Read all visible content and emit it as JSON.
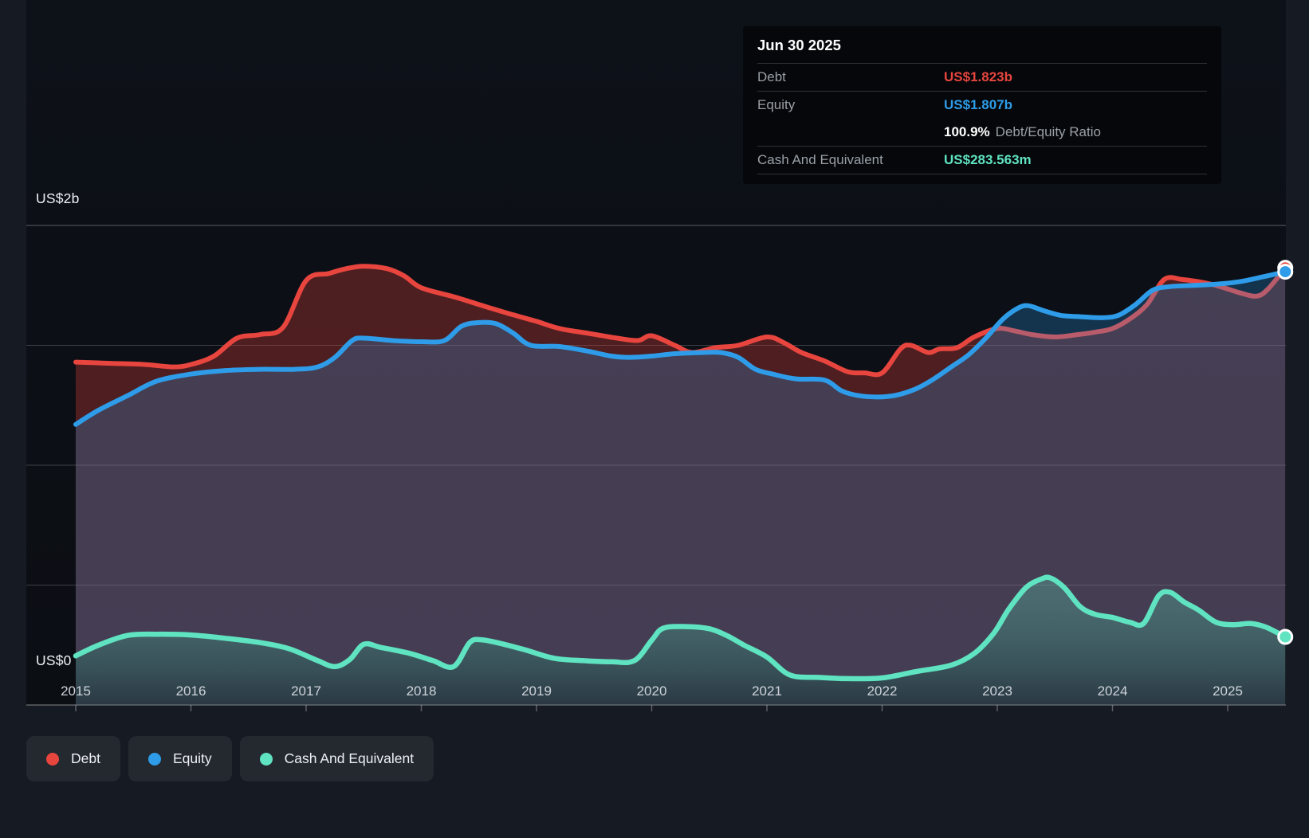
{
  "tooltip": {
    "date": "Jun 30 2025",
    "debt": {
      "label": "Debt",
      "value": "US$1.823b"
    },
    "equity": {
      "label": "Equity",
      "value": "US$1.807b"
    },
    "ratio": {
      "value": "100.9%",
      "label": "Debt/Equity Ratio"
    },
    "cash": {
      "label": "Cash And Equivalent",
      "value": "US$283.563m"
    }
  },
  "axis": {
    "y_top_label": "US$2b",
    "y_bottom_label": "US$0",
    "years": [
      "2015",
      "2016",
      "2017",
      "2018",
      "2019",
      "2020",
      "2021",
      "2022",
      "2023",
      "2024",
      "2025"
    ]
  },
  "legend": {
    "items": [
      {
        "label": "Debt",
        "color": "#e8453f"
      },
      {
        "label": "Equity",
        "color": "#2e9ce8"
      },
      {
        "label": "Cash And Equivalent",
        "color": "#5fe3c0"
      }
    ]
  },
  "colors": {
    "debt": "#e8453f",
    "equity": "#2e9ce8",
    "cash": "#5fe3c0",
    "page_background": "#161b23",
    "plot_background": "#0d1117",
    "tooltip_background": "#05070a"
  },
  "chart_data": {
    "type": "area",
    "title": "",
    "xlabel": "",
    "ylabel": "",
    "x_range": [
      2015.0,
      2025.5
    ],
    "ylim": [
      0,
      2
    ],
    "y_units": "US$ billions",
    "y_gridline_step": 0.5,
    "x_ticks": [
      2015,
      2016,
      2017,
      2018,
      2019,
      2020,
      2021,
      2022,
      2023,
      2024,
      2025
    ],
    "legend_position": "bottom-left",
    "grid": true,
    "last_point_date": "Jun 30 2025",
    "series": [
      {
        "name": "Debt",
        "color": "#e8453f",
        "end_value_b": 1.823,
        "points": [
          [
            2015.0,
            1.43
          ],
          [
            2015.3,
            1.425
          ],
          [
            2015.6,
            1.42
          ],
          [
            2015.85,
            1.41
          ],
          [
            2016.0,
            1.42
          ],
          [
            2016.2,
            1.455
          ],
          [
            2016.4,
            1.53
          ],
          [
            2016.6,
            1.545
          ],
          [
            2016.8,
            1.575
          ],
          [
            2017.0,
            1.77
          ],
          [
            2017.2,
            1.8
          ],
          [
            2017.35,
            1.82
          ],
          [
            2017.5,
            1.83
          ],
          [
            2017.7,
            1.82
          ],
          [
            2017.85,
            1.79
          ],
          [
            2018.0,
            1.74
          ],
          [
            2018.3,
            1.7
          ],
          [
            2018.6,
            1.655
          ],
          [
            2018.85,
            1.62
          ],
          [
            2019.0,
            1.6
          ],
          [
            2019.2,
            1.57
          ],
          [
            2019.45,
            1.55
          ],
          [
            2019.7,
            1.53
          ],
          [
            2019.88,
            1.52
          ],
          [
            2020.0,
            1.54
          ],
          [
            2020.2,
            1.5
          ],
          [
            2020.35,
            1.47
          ],
          [
            2020.55,
            1.49
          ],
          [
            2020.75,
            1.5
          ],
          [
            2021.0,
            1.535
          ],
          [
            2021.15,
            1.51
          ],
          [
            2021.3,
            1.47
          ],
          [
            2021.5,
            1.435
          ],
          [
            2021.7,
            1.39
          ],
          [
            2021.85,
            1.385
          ],
          [
            2022.0,
            1.385
          ],
          [
            2022.16,
            1.485
          ],
          [
            2022.25,
            1.5
          ],
          [
            2022.4,
            1.47
          ],
          [
            2022.5,
            1.485
          ],
          [
            2022.65,
            1.49
          ],
          [
            2022.8,
            1.535
          ],
          [
            2023.0,
            1.57
          ],
          [
            2023.15,
            1.56
          ],
          [
            2023.3,
            1.545
          ],
          [
            2023.5,
            1.535
          ],
          [
            2023.7,
            1.545
          ],
          [
            2023.85,
            1.555
          ],
          [
            2024.0,
            1.57
          ],
          [
            2024.15,
            1.61
          ],
          [
            2024.3,
            1.67
          ],
          [
            2024.45,
            1.775
          ],
          [
            2024.6,
            1.775
          ],
          [
            2024.75,
            1.765
          ],
          [
            2024.9,
            1.75
          ],
          [
            2025.1,
            1.72
          ],
          [
            2025.25,
            1.705
          ],
          [
            2025.35,
            1.735
          ],
          [
            2025.5,
            1.823
          ]
        ]
      },
      {
        "name": "Equity",
        "color": "#2e9ce8",
        "end_value_b": 1.807,
        "points": [
          [
            2015.0,
            1.17
          ],
          [
            2015.2,
            1.23
          ],
          [
            2015.45,
            1.29
          ],
          [
            2015.7,
            1.35
          ],
          [
            2016.0,
            1.38
          ],
          [
            2016.3,
            1.395
          ],
          [
            2016.6,
            1.4
          ],
          [
            2016.9,
            1.4
          ],
          [
            2017.1,
            1.41
          ],
          [
            2017.25,
            1.45
          ],
          [
            2017.4,
            1.52
          ],
          [
            2017.5,
            1.53
          ],
          [
            2017.75,
            1.52
          ],
          [
            2018.0,
            1.515
          ],
          [
            2018.2,
            1.52
          ],
          [
            2018.35,
            1.58
          ],
          [
            2018.5,
            1.595
          ],
          [
            2018.65,
            1.59
          ],
          [
            2018.8,
            1.55
          ],
          [
            2018.95,
            1.5
          ],
          [
            2019.2,
            1.495
          ],
          [
            2019.45,
            1.475
          ],
          [
            2019.65,
            1.455
          ],
          [
            2019.8,
            1.45
          ],
          [
            2020.0,
            1.455
          ],
          [
            2020.2,
            1.465
          ],
          [
            2020.45,
            1.47
          ],
          [
            2020.6,
            1.47
          ],
          [
            2020.75,
            1.45
          ],
          [
            2020.9,
            1.4
          ],
          [
            2021.05,
            1.38
          ],
          [
            2021.25,
            1.36
          ],
          [
            2021.5,
            1.355
          ],
          [
            2021.65,
            1.31
          ],
          [
            2021.8,
            1.29
          ],
          [
            2022.0,
            1.285
          ],
          [
            2022.15,
            1.295
          ],
          [
            2022.3,
            1.32
          ],
          [
            2022.45,
            1.36
          ],
          [
            2022.6,
            1.41
          ],
          [
            2022.75,
            1.46
          ],
          [
            2022.9,
            1.53
          ],
          [
            2023.05,
            1.61
          ],
          [
            2023.18,
            1.655
          ],
          [
            2023.27,
            1.665
          ],
          [
            2023.4,
            1.645
          ],
          [
            2023.55,
            1.625
          ],
          [
            2023.7,
            1.62
          ],
          [
            2023.9,
            1.615
          ],
          [
            2024.05,
            1.625
          ],
          [
            2024.2,
            1.67
          ],
          [
            2024.35,
            1.73
          ],
          [
            2024.5,
            1.745
          ],
          [
            2024.7,
            1.75
          ],
          [
            2024.9,
            1.755
          ],
          [
            2025.1,
            1.765
          ],
          [
            2025.3,
            1.785
          ],
          [
            2025.5,
            1.807
          ]
        ]
      },
      {
        "name": "Cash And Equivalent",
        "color": "#5fe3c0",
        "end_value_b": 0.2836,
        "points": [
          [
            2015.0,
            0.205
          ],
          [
            2015.2,
            0.25
          ],
          [
            2015.45,
            0.29
          ],
          [
            2015.7,
            0.295
          ],
          [
            2016.0,
            0.292
          ],
          [
            2016.3,
            0.278
          ],
          [
            2016.6,
            0.26
          ],
          [
            2016.85,
            0.235
          ],
          [
            2017.1,
            0.185
          ],
          [
            2017.25,
            0.16
          ],
          [
            2017.38,
            0.19
          ],
          [
            2017.5,
            0.253
          ],
          [
            2017.65,
            0.24
          ],
          [
            2017.9,
            0.215
          ],
          [
            2018.1,
            0.185
          ],
          [
            2018.28,
            0.16
          ],
          [
            2018.42,
            0.26
          ],
          [
            2018.52,
            0.272
          ],
          [
            2018.7,
            0.255
          ],
          [
            2018.9,
            0.23
          ],
          [
            2019.15,
            0.195
          ],
          [
            2019.4,
            0.185
          ],
          [
            2019.65,
            0.18
          ],
          [
            2019.85,
            0.185
          ],
          [
            2020.0,
            0.27
          ],
          [
            2020.1,
            0.32
          ],
          [
            2020.3,
            0.327
          ],
          [
            2020.5,
            0.318
          ],
          [
            2020.65,
            0.29
          ],
          [
            2020.8,
            0.25
          ],
          [
            2021.0,
            0.2
          ],
          [
            2021.2,
            0.125
          ],
          [
            2021.45,
            0.115
          ],
          [
            2021.7,
            0.11
          ],
          [
            2022.0,
            0.113
          ],
          [
            2022.3,
            0.14
          ],
          [
            2022.6,
            0.166
          ],
          [
            2022.8,
            0.215
          ],
          [
            2022.97,
            0.3
          ],
          [
            2023.1,
            0.4
          ],
          [
            2023.25,
            0.49
          ],
          [
            2023.38,
            0.525
          ],
          [
            2023.46,
            0.53
          ],
          [
            2023.58,
            0.49
          ],
          [
            2023.72,
            0.41
          ],
          [
            2023.85,
            0.378
          ],
          [
            2024.0,
            0.365
          ],
          [
            2024.15,
            0.345
          ],
          [
            2024.27,
            0.34
          ],
          [
            2024.4,
            0.455
          ],
          [
            2024.5,
            0.47
          ],
          [
            2024.62,
            0.43
          ],
          [
            2024.75,
            0.395
          ],
          [
            2024.9,
            0.345
          ],
          [
            2025.05,
            0.335
          ],
          [
            2025.2,
            0.34
          ],
          [
            2025.33,
            0.325
          ],
          [
            2025.5,
            0.284
          ]
        ]
      }
    ]
  }
}
